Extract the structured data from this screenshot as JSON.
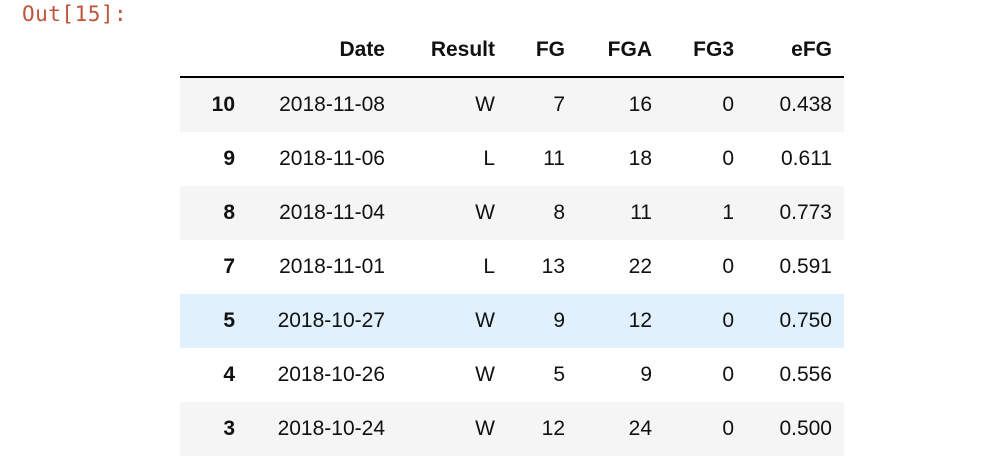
{
  "output_prompt": "Out[15]:",
  "table": {
    "columns": [
      "Date",
      "Result",
      "FG",
      "FGA",
      "FG3",
      "eFG"
    ],
    "index_header": "",
    "rows": [
      {
        "index": "10",
        "cells": [
          "2018-11-08",
          "W",
          "7",
          "16",
          "0",
          "0.438"
        ]
      },
      {
        "index": "9",
        "cells": [
          "2018-11-06",
          "L",
          "11",
          "18",
          "0",
          "0.611"
        ]
      },
      {
        "index": "8",
        "cells": [
          "2018-11-04",
          "W",
          "8",
          "11",
          "1",
          "0.773"
        ]
      },
      {
        "index": "7",
        "cells": [
          "2018-11-01",
          "L",
          "13",
          "22",
          "0",
          "0.591"
        ]
      },
      {
        "index": "5",
        "cells": [
          "2018-10-27",
          "W",
          "9",
          "12",
          "0",
          "0.750"
        ]
      },
      {
        "index": "4",
        "cells": [
          "2018-10-26",
          "W",
          "5",
          "9",
          "0",
          "0.556"
        ]
      },
      {
        "index": "3",
        "cells": [
          "2018-10-24",
          "W",
          "12",
          "24",
          "0",
          "0.500"
        ]
      }
    ],
    "highlighted_row_index": "5"
  },
  "colors": {
    "prompt": "#c0543a",
    "stripe": "#f5f5f5",
    "hover": "#e0f0fc",
    "header_rule": "#000000"
  }
}
